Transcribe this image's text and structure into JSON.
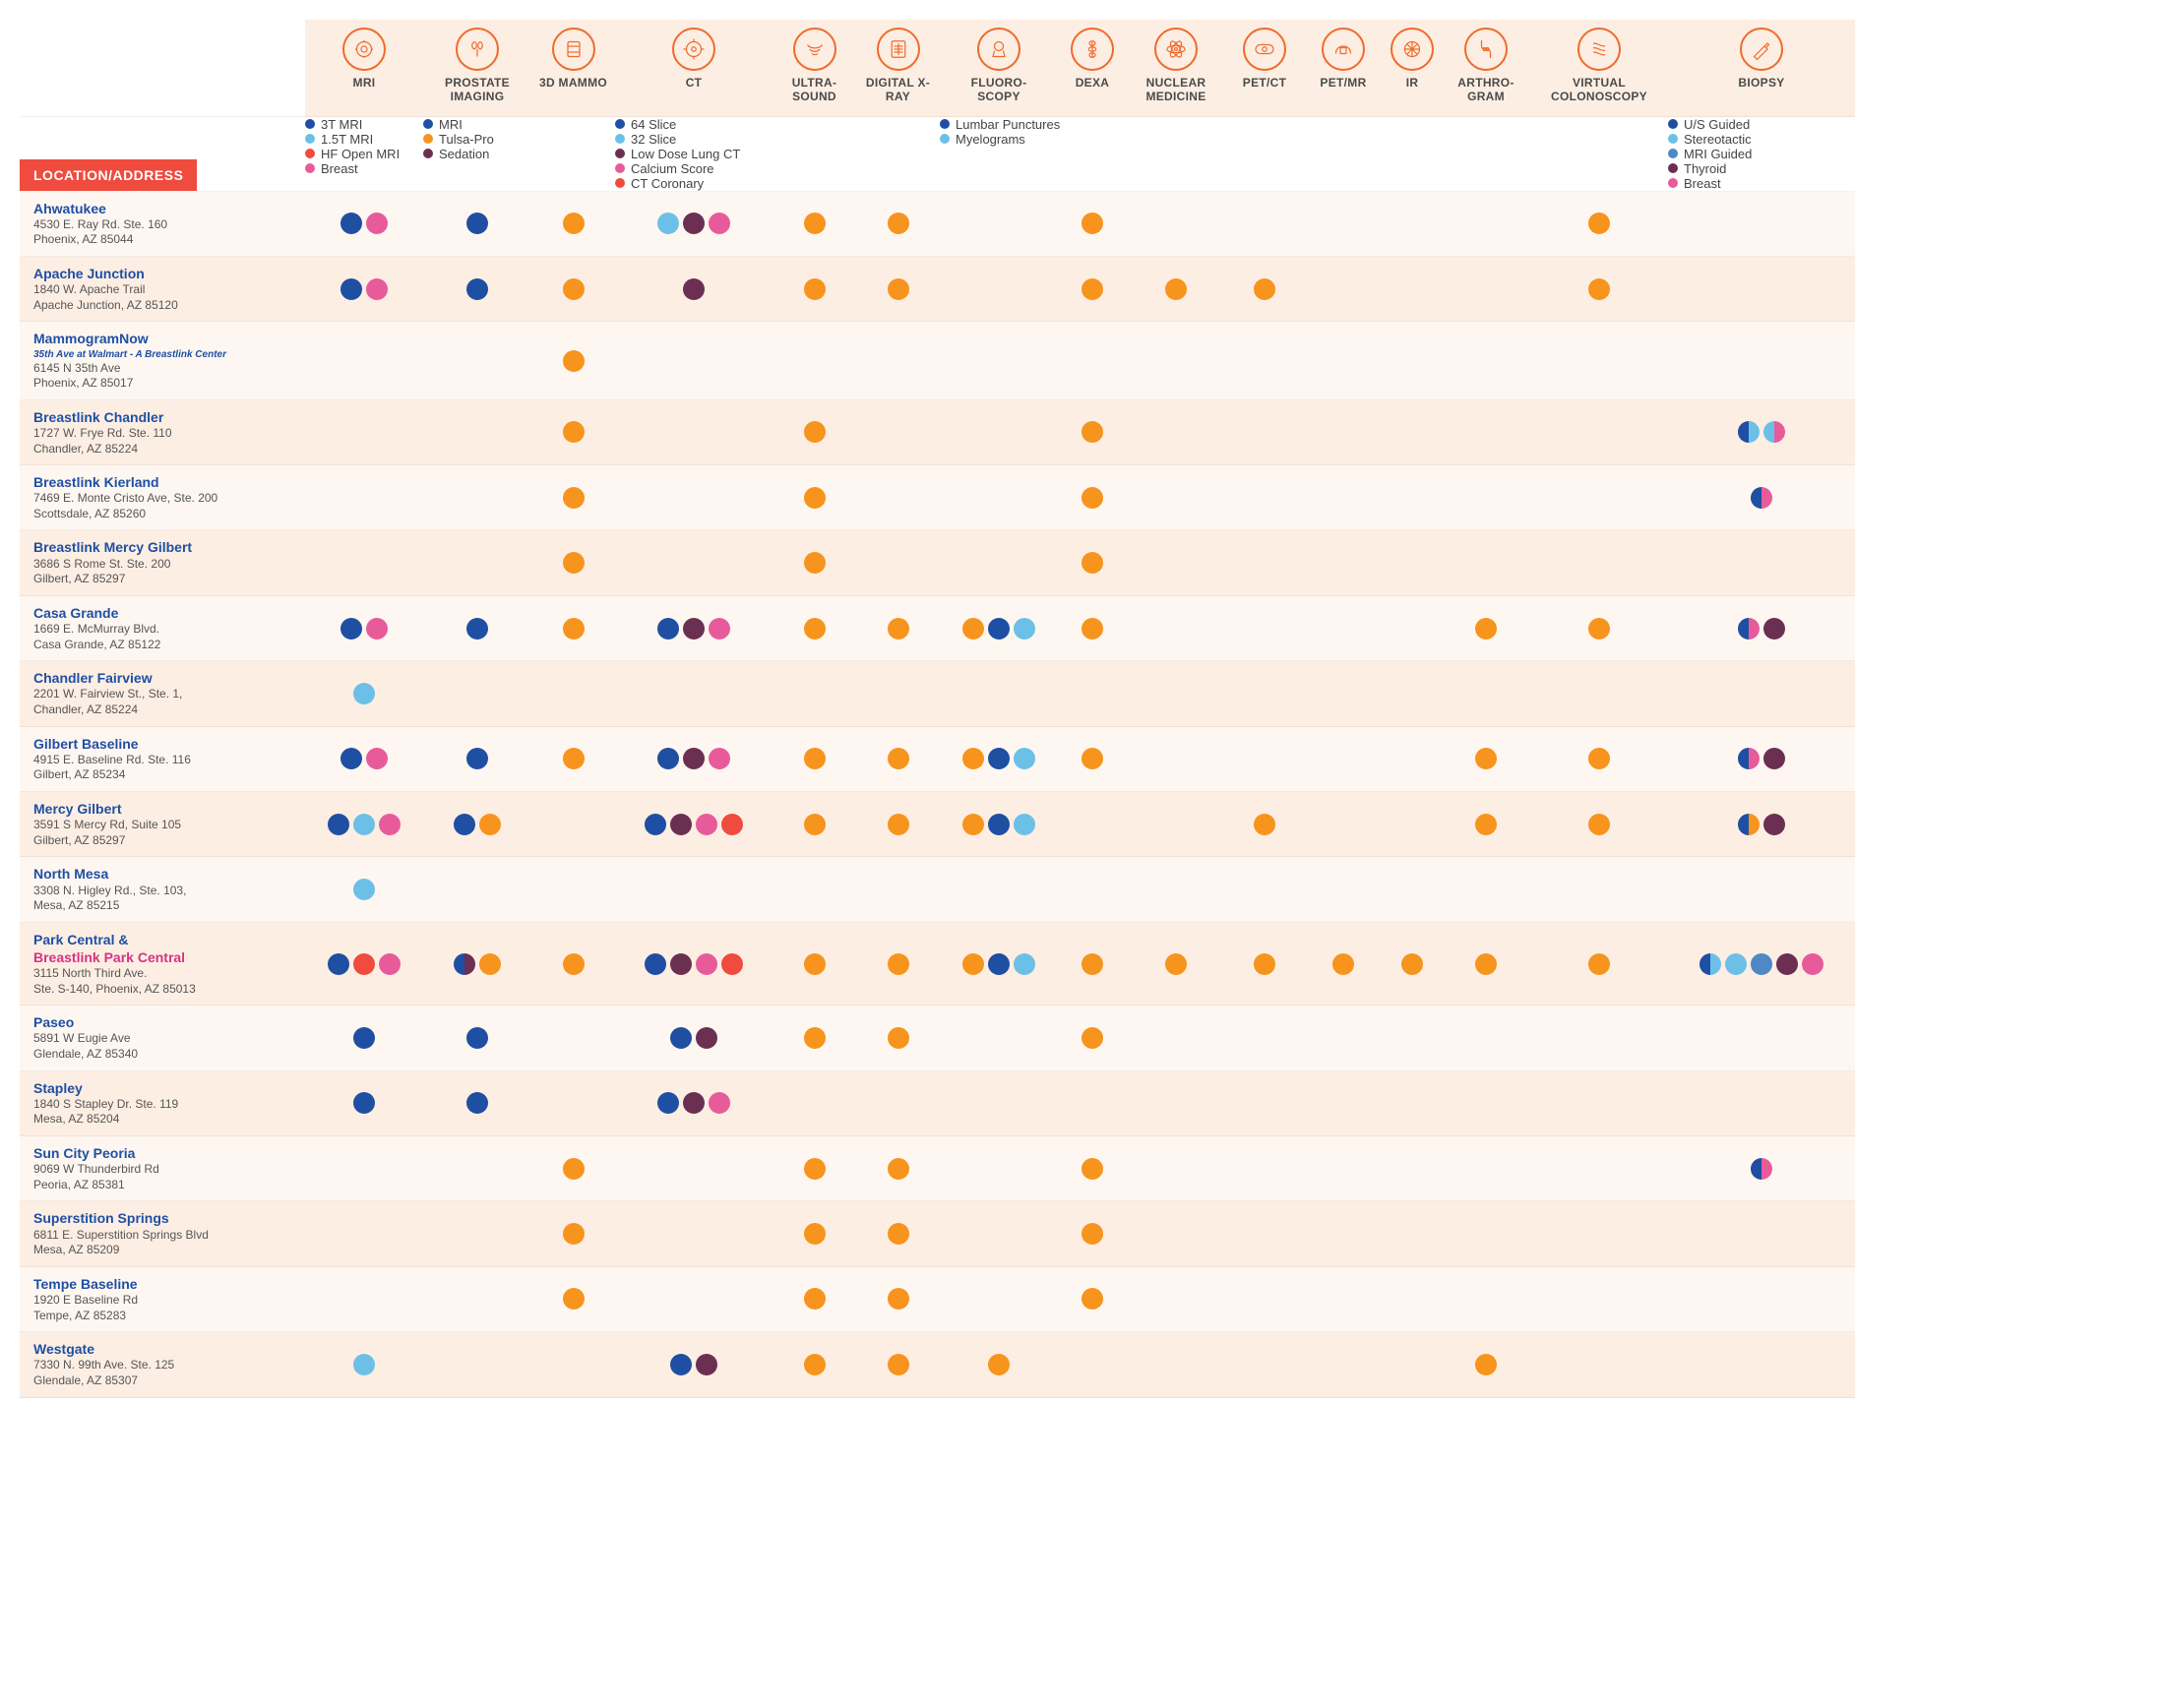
{
  "colors": {
    "accent": "#f06a2a",
    "header_bg": "#fdeee3",
    "row_odd": "#fef7f1",
    "row_even": "#fdeee3",
    "loc_label_bg": "#ef4b3e",
    "loc_label_text": "#ffffff",
    "link": "#1f4fa3",
    "pink_link": "#d63384",
    "dot_navy": "#1f4fa3",
    "dot_lightblue": "#6cc0e8",
    "dot_orange": "#f7941d",
    "dot_maroon": "#6b2f52",
    "dot_pink": "#e85b9b",
    "dot_red": "#ef4b3e",
    "dot_midblue": "#4f87c7"
  },
  "loc_header": "LOCATION/ADDRESS",
  "columns": [
    {
      "key": "mri",
      "label": "MRI",
      "icon": "mri"
    },
    {
      "key": "prostate",
      "label": "PROSTATE IMAGING",
      "icon": "prostate"
    },
    {
      "key": "mammo",
      "label": "3D MAMMO",
      "icon": "mammo"
    },
    {
      "key": "ct",
      "label": "CT",
      "icon": "ct"
    },
    {
      "key": "us",
      "label": "ULTRA-\nSOUND",
      "icon": "us"
    },
    {
      "key": "xray",
      "label": "DIGITAL X-RAY",
      "icon": "xray"
    },
    {
      "key": "fluoro",
      "label": "FLUORO-\nSCOPY",
      "icon": "fluoro"
    },
    {
      "key": "dexa",
      "label": "DEXA",
      "icon": "dexa"
    },
    {
      "key": "nuclear",
      "label": "NUCLEAR MEDICINE",
      "icon": "nuclear"
    },
    {
      "key": "petct",
      "label": "PET/CT",
      "icon": "petct"
    },
    {
      "key": "petmr",
      "label": "PET/MR",
      "icon": "petmr"
    },
    {
      "key": "ir",
      "label": "IR",
      "icon": "ir"
    },
    {
      "key": "arthro",
      "label": "ARTHRO-\nGRAM",
      "icon": "arthro"
    },
    {
      "key": "vc",
      "label": "VIRTUAL COLONOSCOPY",
      "icon": "vc"
    },
    {
      "key": "biopsy",
      "label": "BIOPSY",
      "icon": "biopsy"
    }
  ],
  "sublegends": {
    "mri": [
      {
        "color": "dot_navy",
        "label": "3T MRI"
      },
      {
        "color": "dot_lightblue",
        "label": "1.5T MRI"
      },
      {
        "color": "dot_red",
        "label": "HF Open MRI"
      },
      {
        "color": "dot_pink",
        "label": "Breast"
      }
    ],
    "prostate": [
      {
        "color": "dot_navy",
        "label": "MRI"
      },
      {
        "color": "dot_orange",
        "label": "Tulsa-Pro"
      },
      {
        "color": "dot_maroon",
        "label": "Sedation"
      }
    ],
    "ct": [
      {
        "color": "dot_navy",
        "label": "64 Slice"
      },
      {
        "color": "dot_lightblue",
        "label": "32 Slice"
      },
      {
        "color": "dot_maroon",
        "label": "Low Dose Lung CT"
      },
      {
        "color": "dot_pink",
        "label": "Calcium Score"
      },
      {
        "color": "dot_red",
        "label": "CT Coronary"
      }
    ],
    "fluoro": [
      {
        "color": "dot_navy",
        "label": "Lumbar Punctures"
      },
      {
        "color": "dot_lightblue",
        "label": "Myelograms"
      }
    ],
    "biopsy": [
      {
        "color": "dot_navy",
        "label": "U/S Guided"
      },
      {
        "color": "dot_lightblue",
        "label": "Stereotactic"
      },
      {
        "color": "dot_midblue",
        "label": "MRI Guided"
      },
      {
        "color": "dot_maroon",
        "label": "Thyroid"
      },
      {
        "color": "dot_pink",
        "label": "Breast"
      }
    ]
  },
  "locations": [
    {
      "name": "Ahwatukee",
      "addr": [
        "4530 E. Ray Rd. Ste. 160",
        "Phoenix, AZ 85044"
      ],
      "cells": {
        "mri": [
          {
            "c": "dot_navy"
          },
          {
            "c": "dot_pink"
          }
        ],
        "prostate": [
          {
            "c": "dot_navy"
          }
        ],
        "mammo": [
          {
            "c": "dot_orange"
          }
        ],
        "ct": [
          {
            "c": "dot_lightblue"
          },
          {
            "c": "dot_maroon"
          },
          {
            "c": "dot_pink"
          }
        ],
        "us": [
          {
            "c": "dot_orange"
          }
        ],
        "xray": [
          {
            "c": "dot_orange"
          }
        ],
        "dexa": [
          {
            "c": "dot_orange"
          }
        ],
        "vc": [
          {
            "c": "dot_orange"
          }
        ]
      }
    },
    {
      "name": "Apache Junction",
      "addr": [
        "1840 W. Apache Trail",
        "Apache Junction, AZ 85120"
      ],
      "cells": {
        "mri": [
          {
            "c": "dot_navy"
          },
          {
            "c": "dot_pink"
          }
        ],
        "prostate": [
          {
            "c": "dot_navy"
          }
        ],
        "mammo": [
          {
            "c": "dot_orange"
          }
        ],
        "ct": [
          {
            "c": "dot_maroon"
          }
        ],
        "us": [
          {
            "c": "dot_orange"
          }
        ],
        "xray": [
          {
            "c": "dot_orange"
          }
        ],
        "dexa": [
          {
            "c": "dot_orange"
          }
        ],
        "nuclear": [
          {
            "c": "dot_orange"
          }
        ],
        "petct": [
          {
            "c": "dot_orange"
          }
        ],
        "vc": [
          {
            "c": "dot_orange"
          }
        ]
      }
    },
    {
      "name": "MammogramNow",
      "subtitle": "35th Ave at Walmart - A Breastlink Center",
      "addr": [
        "6145 N 35th Ave",
        "Phoenix, AZ 85017"
      ],
      "cells": {
        "mammo": [
          {
            "c": "dot_orange"
          }
        ]
      }
    },
    {
      "name": "Breastlink Chandler",
      "addr": [
        "1727 W. Frye Rd. Ste. 110",
        "Chandler, AZ 85224"
      ],
      "cells": {
        "mammo": [
          {
            "c": "dot_orange"
          }
        ],
        "us": [
          {
            "c": "dot_orange"
          }
        ],
        "dexa": [
          {
            "c": "dot_orange"
          }
        ],
        "biopsy": [
          {
            "half": [
              "dot_navy",
              "dot_lightblue"
            ]
          },
          {
            "half": [
              "dot_lightblue",
              "dot_pink"
            ]
          }
        ]
      }
    },
    {
      "name": "Breastlink Kierland",
      "addr": [
        "7469 E. Monte Cristo Ave, Ste. 200",
        "Scottsdale, AZ 85260"
      ],
      "cells": {
        "mammo": [
          {
            "c": "dot_orange"
          }
        ],
        "us": [
          {
            "c": "dot_orange"
          }
        ],
        "dexa": [
          {
            "c": "dot_orange"
          }
        ],
        "biopsy": [
          {
            "half": [
              "dot_navy",
              "dot_pink"
            ]
          }
        ]
      }
    },
    {
      "name": "Breastlink Mercy Gilbert",
      "addr": [
        "3686 S Rome St. Ste. 200",
        "Gilbert, AZ 85297"
      ],
      "cells": {
        "mammo": [
          {
            "c": "dot_orange"
          }
        ],
        "us": [
          {
            "c": "dot_orange"
          }
        ],
        "dexa": [
          {
            "c": "dot_orange"
          }
        ]
      }
    },
    {
      "name": "Casa Grande",
      "addr": [
        "1669 E. McMurray Blvd.",
        "Casa Grande, AZ 85122"
      ],
      "cells": {
        "mri": [
          {
            "c": "dot_navy"
          },
          {
            "c": "dot_pink"
          }
        ],
        "prostate": [
          {
            "c": "dot_navy"
          }
        ],
        "mammo": [
          {
            "c": "dot_orange"
          }
        ],
        "ct": [
          {
            "c": "dot_navy"
          },
          {
            "c": "dot_maroon"
          },
          {
            "c": "dot_pink"
          }
        ],
        "us": [
          {
            "c": "dot_orange"
          }
        ],
        "xray": [
          {
            "c": "dot_orange"
          }
        ],
        "fluoro": [
          {
            "c": "dot_orange"
          },
          {
            "c": "dot_navy"
          },
          {
            "c": "dot_lightblue"
          }
        ],
        "dexa": [
          {
            "c": "dot_orange"
          }
        ],
        "arthro": [
          {
            "c": "dot_orange"
          }
        ],
        "vc": [
          {
            "c": "dot_orange"
          }
        ],
        "biopsy": [
          {
            "half": [
              "dot_navy",
              "dot_pink"
            ]
          },
          {
            "c": "dot_maroon"
          }
        ]
      }
    },
    {
      "name": "Chandler Fairview",
      "addr": [
        "2201 W. Fairview St., Ste. 1,",
        "Chandler, AZ 85224"
      ],
      "cells": {
        "mri": [
          {
            "c": "dot_lightblue"
          }
        ]
      }
    },
    {
      "name": "Gilbert Baseline",
      "addr": [
        "4915 E. Baseline Rd. Ste. 116",
        "Gilbert, AZ 85234"
      ],
      "cells": {
        "mri": [
          {
            "c": "dot_navy"
          },
          {
            "c": "dot_pink"
          }
        ],
        "prostate": [
          {
            "c": "dot_navy"
          }
        ],
        "mammo": [
          {
            "c": "dot_orange"
          }
        ],
        "ct": [
          {
            "c": "dot_navy"
          },
          {
            "c": "dot_maroon"
          },
          {
            "c": "dot_pink"
          }
        ],
        "us": [
          {
            "c": "dot_orange"
          }
        ],
        "xray": [
          {
            "c": "dot_orange"
          }
        ],
        "fluoro": [
          {
            "c": "dot_orange"
          },
          {
            "c": "dot_navy"
          },
          {
            "c": "dot_lightblue"
          }
        ],
        "dexa": [
          {
            "c": "dot_orange"
          }
        ],
        "arthro": [
          {
            "c": "dot_orange"
          }
        ],
        "vc": [
          {
            "c": "dot_orange"
          }
        ],
        "biopsy": [
          {
            "half": [
              "dot_navy",
              "dot_pink"
            ]
          },
          {
            "c": "dot_maroon"
          }
        ]
      }
    },
    {
      "name": "Mercy Gilbert",
      "addr": [
        "3591 S Mercy Rd, Suite 105",
        "Gilbert, AZ 85297"
      ],
      "cells": {
        "mri": [
          {
            "c": "dot_navy"
          },
          {
            "c": "dot_lightblue"
          },
          {
            "c": "dot_pink"
          }
        ],
        "prostate": [
          {
            "c": "dot_navy"
          },
          {
            "c": "dot_orange"
          }
        ],
        "ct": [
          {
            "c": "dot_navy"
          },
          {
            "c": "dot_maroon"
          },
          {
            "c": "dot_pink"
          },
          {
            "c": "dot_red"
          }
        ],
        "us": [
          {
            "c": "dot_orange"
          }
        ],
        "xray": [
          {
            "c": "dot_orange"
          }
        ],
        "fluoro": [
          {
            "c": "dot_orange"
          },
          {
            "c": "dot_navy"
          },
          {
            "c": "dot_lightblue"
          }
        ],
        "petct": [
          {
            "c": "dot_orange"
          }
        ],
        "arthro": [
          {
            "c": "dot_orange"
          }
        ],
        "vc": [
          {
            "c": "dot_orange"
          }
        ],
        "biopsy": [
          {
            "half": [
              "dot_navy",
              "dot_orange"
            ]
          },
          {
            "c": "dot_maroon"
          }
        ]
      }
    },
    {
      "name": "North Mesa",
      "addr": [
        "3308 N. Higley Rd., Ste. 103,",
        "Mesa, AZ 85215"
      ],
      "cells": {
        "mri": [
          {
            "c": "dot_lightblue"
          }
        ]
      }
    },
    {
      "name": "Park Central &",
      "name2": "Breastlink Park Central",
      "addr": [
        "3115 North Third Ave.",
        "Ste. S-140, Phoenix, AZ 85013"
      ],
      "cells": {
        "mri": [
          {
            "c": "dot_navy"
          },
          {
            "c": "dot_red"
          },
          {
            "c": "dot_pink"
          }
        ],
        "prostate": [
          {
            "half": [
              "dot_navy",
              "dot_maroon"
            ]
          },
          {
            "c": "dot_orange"
          }
        ],
        "mammo": [
          {
            "c": "dot_orange"
          }
        ],
        "ct": [
          {
            "c": "dot_navy"
          },
          {
            "c": "dot_maroon"
          },
          {
            "c": "dot_pink"
          },
          {
            "c": "dot_red"
          }
        ],
        "us": [
          {
            "c": "dot_orange"
          }
        ],
        "xray": [
          {
            "c": "dot_orange"
          }
        ],
        "fluoro": [
          {
            "c": "dot_orange"
          },
          {
            "c": "dot_navy"
          },
          {
            "c": "dot_lightblue"
          }
        ],
        "dexa": [
          {
            "c": "dot_orange"
          }
        ],
        "nuclear": [
          {
            "c": "dot_orange"
          }
        ],
        "petct": [
          {
            "c": "dot_orange"
          }
        ],
        "petmr": [
          {
            "c": "dot_orange"
          }
        ],
        "ir": [
          {
            "c": "dot_orange"
          }
        ],
        "arthro": [
          {
            "c": "dot_orange"
          }
        ],
        "vc": [
          {
            "c": "dot_orange"
          }
        ],
        "biopsy": [
          {
            "half": [
              "dot_navy",
              "dot_lightblue"
            ]
          },
          {
            "c": "dot_lightblue"
          },
          {
            "c": "dot_midblue"
          },
          {
            "c": "dot_maroon"
          },
          {
            "c": "dot_pink"
          }
        ]
      }
    },
    {
      "name": "Paseo",
      "addr": [
        "5891 W Eugie Ave",
        "Glendale, AZ 85340"
      ],
      "cells": {
        "mri": [
          {
            "c": "dot_navy"
          }
        ],
        "prostate": [
          {
            "c": "dot_navy"
          }
        ],
        "ct": [
          {
            "c": "dot_navy"
          },
          {
            "c": "dot_maroon"
          }
        ],
        "us": [
          {
            "c": "dot_orange"
          }
        ],
        "xray": [
          {
            "c": "dot_orange"
          }
        ],
        "dexa": [
          {
            "c": "dot_orange"
          }
        ]
      }
    },
    {
      "name": "Stapley",
      "addr": [
        "1840 S Stapley Dr. Ste. 119",
        "Mesa, AZ 85204"
      ],
      "cells": {
        "mri": [
          {
            "c": "dot_navy"
          }
        ],
        "prostate": [
          {
            "c": "dot_navy"
          }
        ],
        "ct": [
          {
            "c": "dot_navy"
          },
          {
            "c": "dot_maroon"
          },
          {
            "c": "dot_pink"
          }
        ]
      }
    },
    {
      "name": "Sun City Peoria",
      "addr": [
        "9069 W Thunderbird Rd",
        "Peoria, AZ 85381"
      ],
      "cells": {
        "mammo": [
          {
            "c": "dot_orange"
          }
        ],
        "us": [
          {
            "c": "dot_orange"
          }
        ],
        "xray": [
          {
            "c": "dot_orange"
          }
        ],
        "dexa": [
          {
            "c": "dot_orange"
          }
        ],
        "biopsy": [
          {
            "half": [
              "dot_navy",
              "dot_pink"
            ]
          }
        ]
      }
    },
    {
      "name": "Superstition Springs",
      "addr": [
        "6811 E. Superstition Springs Blvd",
        "Mesa, AZ 85209"
      ],
      "cells": {
        "mammo": [
          {
            "c": "dot_orange"
          }
        ],
        "us": [
          {
            "c": "dot_orange"
          }
        ],
        "xray": [
          {
            "c": "dot_orange"
          }
        ],
        "dexa": [
          {
            "c": "dot_orange"
          }
        ]
      }
    },
    {
      "name": "Tempe Baseline",
      "addr": [
        "1920 E Baseline Rd",
        "Tempe, AZ 85283"
      ],
      "cells": {
        "mammo": [
          {
            "c": "dot_orange"
          }
        ],
        "us": [
          {
            "c": "dot_orange"
          }
        ],
        "xray": [
          {
            "c": "dot_orange"
          }
        ],
        "dexa": [
          {
            "c": "dot_orange"
          }
        ]
      }
    },
    {
      "name": "Westgate",
      "addr": [
        "7330 N. 99th Ave. Ste. 125",
        "Glendale, AZ 85307"
      ],
      "cells": {
        "mri": [
          {
            "c": "dot_lightblue"
          }
        ],
        "ct": [
          {
            "c": "dot_navy"
          },
          {
            "c": "dot_maroon"
          }
        ],
        "us": [
          {
            "c": "dot_orange"
          }
        ],
        "xray": [
          {
            "c": "dot_orange"
          }
        ],
        "fluoro": [
          {
            "c": "dot_orange"
          }
        ],
        "arthro": [
          {
            "c": "dot_orange"
          }
        ]
      }
    }
  ]
}
